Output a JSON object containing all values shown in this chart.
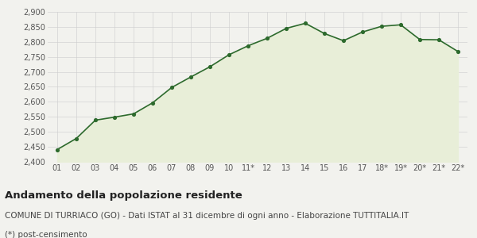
{
  "x_labels": [
    "01",
    "02",
    "03",
    "04",
    "05",
    "06",
    "07",
    "08",
    "09",
    "10",
    "11*",
    "12",
    "13",
    "14",
    "15",
    "16",
    "17",
    "18*",
    "19*",
    "20*",
    "21*",
    "22*"
  ],
  "values": [
    2441,
    2478,
    2539,
    2549,
    2560,
    2597,
    2648,
    2683,
    2717,
    2757,
    2787,
    2812,
    2845,
    2862,
    2828,
    2804,
    2833,
    2852,
    2857,
    2808,
    2807,
    2768
  ],
  "line_color": "#2d6a2d",
  "fill_color": "#e8eed8",
  "marker_color": "#2d6a2d",
  "bg_color": "#f2f2ee",
  "grid_color": "#cccccc",
  "ylim": [
    2400,
    2900
  ],
  "yticks": [
    2400,
    2450,
    2500,
    2550,
    2600,
    2650,
    2700,
    2750,
    2800,
    2850,
    2900
  ],
  "title": "Andamento della popolazione residente",
  "subtitle": "COMUNE DI TURRIACO (GO) - Dati ISTAT al 31 dicembre di ogni anno - Elaborazione TUTTITALIA.IT",
  "footnote": "(*) post-censimento",
  "title_fontsize": 9.5,
  "subtitle_fontsize": 7.5,
  "footnote_fontsize": 7.5,
  "tick_fontsize": 7,
  "axis_label_color": "#555555"
}
